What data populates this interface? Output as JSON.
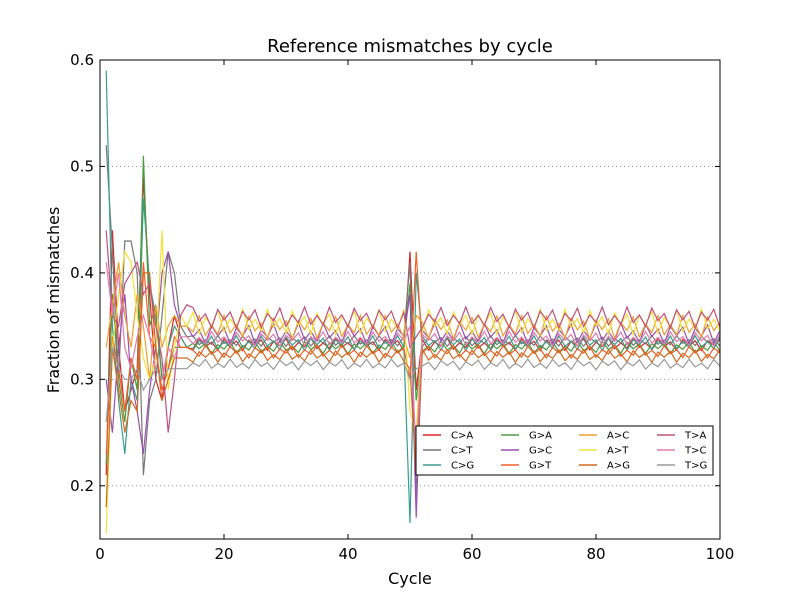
{
  "chart_data": {
    "type": "line",
    "title": "Reference mismatches by cycle",
    "xlabel": "Cycle",
    "ylabel": "Fraction of mismatches",
    "xlim": [
      0,
      100
    ],
    "ylim": [
      0.15,
      0.6
    ],
    "xticks": [
      0,
      20,
      40,
      60,
      80,
      100
    ],
    "xtick_labels": [
      "0",
      "20",
      "40",
      "60",
      "80",
      "100"
    ],
    "yticks": [
      0.2,
      0.3,
      0.4,
      0.5,
      0.6
    ],
    "ytick_labels": [
      "0.2",
      "0.3",
      "0.4",
      "0.5",
      "0.6"
    ],
    "grid": "horizontal dotted",
    "legend_position": "lower-right",
    "series": [
      {
        "name": "C>A",
        "color": "#d62728",
        "base": 0.333,
        "amp": 0.006,
        "early": [
          0.21,
          0.44,
          0.33,
          0.27,
          0.29,
          0.31,
          0.49,
          0.38,
          0.3,
          0.28,
          0.33,
          0.36,
          0.34,
          0.33
        ],
        "spike": [
          0.42,
          0.29
        ]
      },
      {
        "name": "C>T",
        "color": "#777777",
        "base": 0.336,
        "amp": 0.005,
        "early": [
          0.52,
          0.42,
          0.3,
          0.43,
          0.43,
          0.4,
          0.21,
          0.28,
          0.3,
          0.36,
          0.42,
          0.4,
          0.35,
          0.34
        ],
        "spike": [
          0.41,
          0.19
        ]
      },
      {
        "name": "C>G",
        "color": "#3a9e8f",
        "base": 0.334,
        "amp": 0.007,
        "early": [
          0.59,
          0.35,
          0.28,
          0.23,
          0.3,
          0.28,
          0.47,
          0.39,
          0.36,
          0.3,
          0.33,
          0.35,
          0.34,
          0.33
        ],
        "spike": [
          0.165,
          0.4
        ]
      },
      {
        "name": "G>A",
        "color": "#4c9a40",
        "base": 0.33,
        "amp": 0.006,
        "early": [
          0.22,
          0.38,
          0.3,
          0.26,
          0.32,
          0.29,
          0.51,
          0.35,
          0.37,
          0.3,
          0.31,
          0.33,
          0.33,
          0.33
        ],
        "spike": [
          0.39,
          0.28
        ]
      },
      {
        "name": "G>C",
        "color": "#9b4fb0",
        "base": 0.343,
        "amp": 0.01,
        "early": [
          0.3,
          0.25,
          0.33,
          0.38,
          0.3,
          0.27,
          0.23,
          0.29,
          0.33,
          0.4,
          0.42,
          0.37,
          0.35,
          0.35
        ],
        "spike": [
          0.38,
          0.17
        ]
      },
      {
        "name": "G>T",
        "color": "#f0602a",
        "base": 0.326,
        "amp": 0.006,
        "early": [
          0.23,
          0.34,
          0.31,
          0.27,
          0.32,
          0.3,
          0.41,
          0.34,
          0.33,
          0.29,
          0.31,
          0.34,
          0.33,
          0.33
        ],
        "spike": [
          0.3,
          0.42
        ]
      },
      {
        "name": "A>C",
        "color": "#f0a030",
        "base": 0.349,
        "amp": 0.011,
        "early": [
          0.33,
          0.37,
          0.41,
          0.36,
          0.33,
          0.38,
          0.35,
          0.3,
          0.37,
          0.33,
          0.35,
          0.36,
          0.35,
          0.35
        ],
        "spike": [
          0.32,
          0.36
        ]
      },
      {
        "name": "A>T",
        "color": "#f2e23a",
        "base": 0.354,
        "amp": 0.012,
        "early": [
          0.155,
          0.33,
          0.38,
          0.42,
          0.41,
          0.36,
          0.32,
          0.3,
          0.32,
          0.44,
          0.29,
          0.33,
          0.36,
          0.35
        ],
        "spike": [
          0.27,
          0.25
        ]
      },
      {
        "name": "A>G",
        "color": "#d26a1e",
        "base": 0.322,
        "amp": 0.006,
        "early": [
          0.18,
          0.33,
          0.29,
          0.25,
          0.28,
          0.27,
          0.4,
          0.4,
          0.33,
          0.28,
          0.3,
          0.32,
          0.32,
          0.32
        ],
        "spike": [
          0.31,
          0.21
        ]
      },
      {
        "name": "T>A",
        "color": "#c0507e",
        "base": 0.358,
        "amp": 0.01,
        "early": [
          0.44,
          0.36,
          0.35,
          0.39,
          0.4,
          0.41,
          0.38,
          0.39,
          0.35,
          0.32,
          0.25,
          0.3,
          0.36,
          0.37
        ],
        "spike": [
          0.33,
          0.34
        ]
      },
      {
        "name": "T>C",
        "color": "#e07db0",
        "base": 0.338,
        "amp": 0.007,
        "early": [
          0.41,
          0.36,
          0.4,
          0.33,
          0.31,
          0.34,
          0.36,
          0.34,
          0.31,
          0.3,
          0.33,
          0.32,
          0.34,
          0.34
        ],
        "spike": [
          0.35,
          0.23
        ]
      },
      {
        "name": "T>G",
        "color": "#9a9a9a",
        "base": 0.314,
        "amp": 0.005,
        "early": [
          0.26,
          0.33,
          0.31,
          0.3,
          0.3,
          0.31,
          0.29,
          0.3,
          0.31,
          0.3,
          0.31,
          0.31,
          0.31,
          0.31
        ],
        "spike": [
          0.3,
          0.31
        ]
      }
    ]
  }
}
